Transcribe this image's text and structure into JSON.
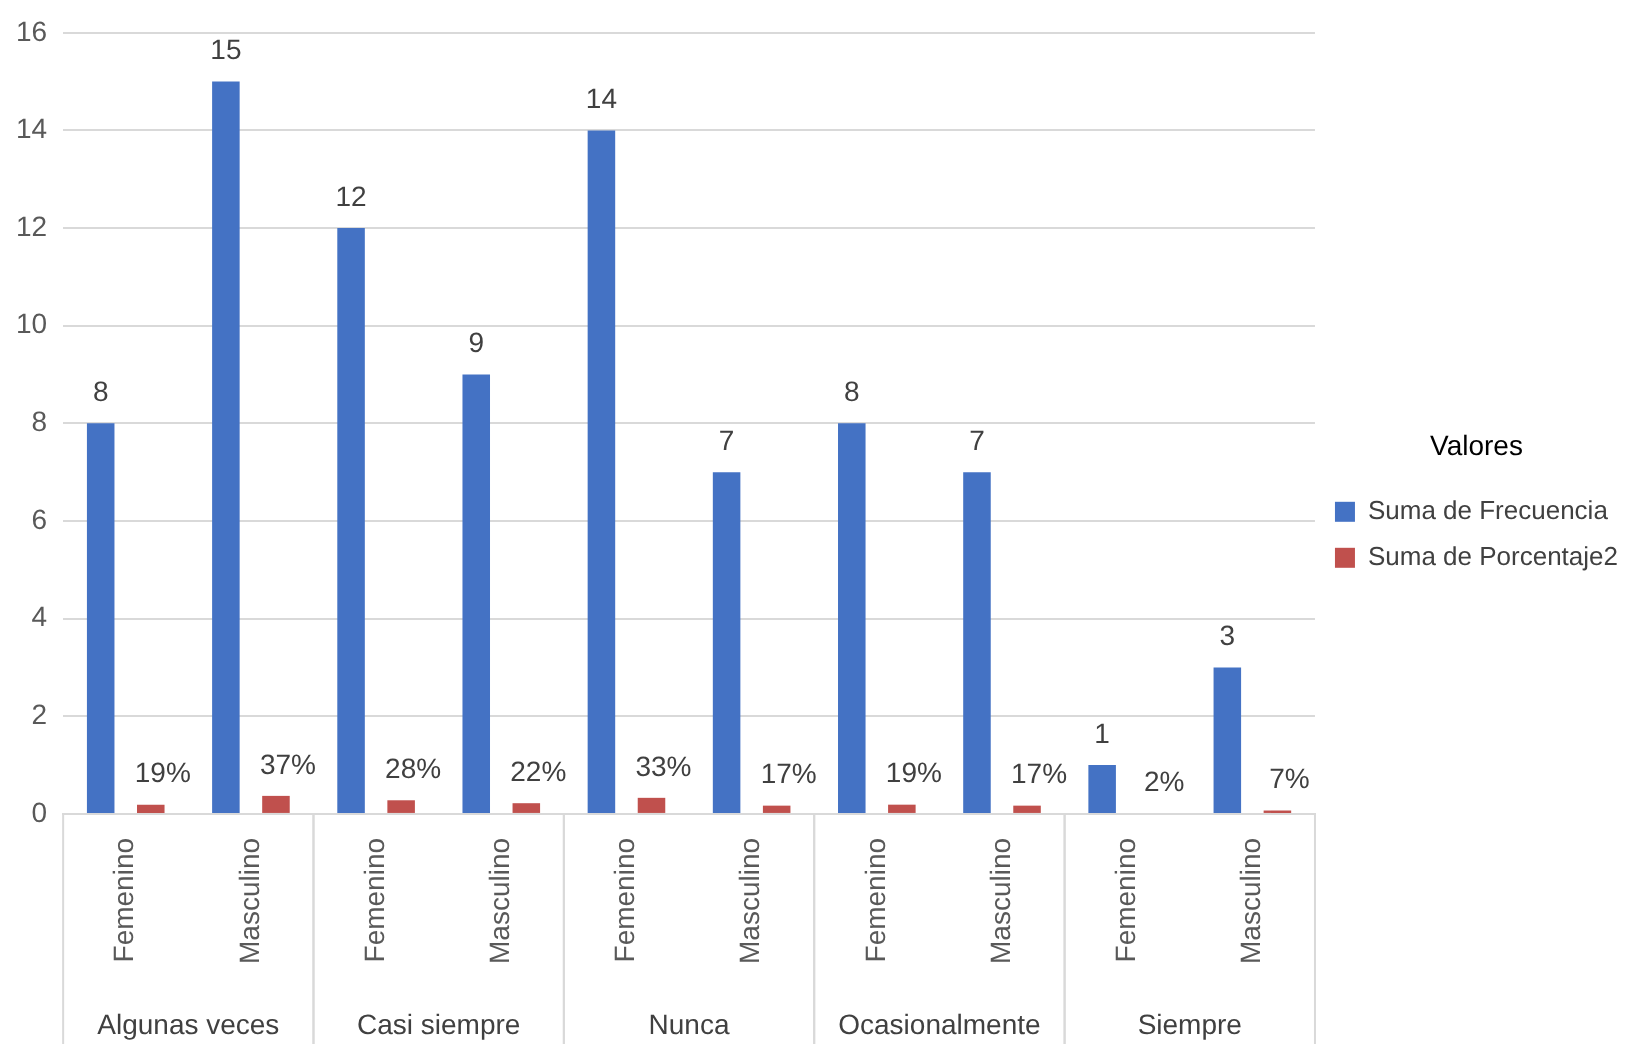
{
  "chart_data": {
    "type": "bar",
    "categories": [
      "Femenino",
      "Masculino",
      "Femenino",
      "Masculino",
      "Femenino",
      "Masculino",
      "Femenino",
      "Masculino",
      "Femenino",
      "Masculino"
    ],
    "annotations": [
      "Algunas veces",
      "Casi siempre",
      "Nunca",
      "Ocasionalmente",
      "Siempre"
    ],
    "series": [
      {
        "name": "Suma de Frecuencia",
        "color": "#4472c4",
        "values": [
          8,
          15,
          12,
          9,
          14,
          7,
          8,
          7,
          1,
          3
        ],
        "value_labels": [
          "8",
          "15",
          "12",
          "9",
          "14",
          "7",
          "8",
          "7",
          "1",
          "3"
        ]
      },
      {
        "name": "Suma de Porcentaje2",
        "color": "#c0504d",
        "values": [
          0.19,
          0.37,
          0.28,
          0.22,
          0.33,
          0.17,
          0.19,
          0.17,
          0.02,
          0.07
        ],
        "value_labels": [
          "19%",
          "37%",
          "28%",
          "22%",
          "33%",
          "17%",
          "19%",
          "17%",
          "2%",
          "7%"
        ]
      }
    ],
    "legend_title": "Valores",
    "legend": "right",
    "ylim": [
      0,
      16
    ],
    "yticks": [
      0,
      2,
      4,
      6,
      8,
      10,
      12,
      14,
      16
    ],
    "grid": "y"
  }
}
